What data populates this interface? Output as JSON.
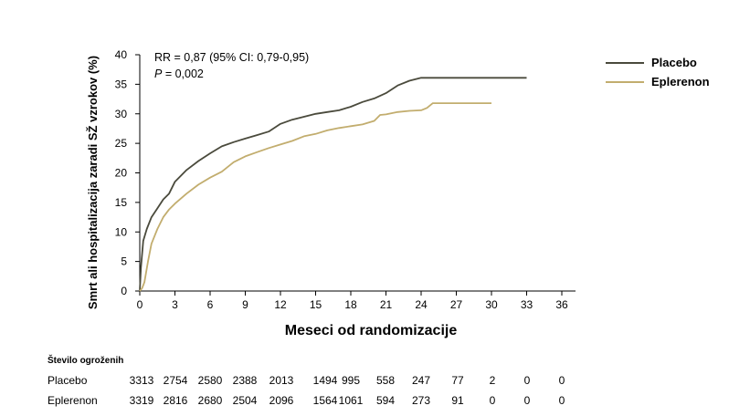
{
  "chart_data": {
    "type": "line",
    "xlabel": "Meseci od randomizacije",
    "ylabel": "Smrt ali hospitalizacija zaradi SŽ vzrokov (%)",
    "xlim": [
      0,
      36
    ],
    "ylim": [
      0,
      40
    ],
    "x_ticks": [
      0,
      3,
      6,
      9,
      12,
      15,
      18,
      21,
      24,
      27,
      30,
      33,
      36
    ],
    "y_ticks": [
      0,
      5,
      10,
      15,
      20,
      25,
      30,
      35,
      40
    ],
    "annotation_rr": "RR = 0,87 (95% CI: 0,79-0,95)",
    "annotation_p_label": "P",
    "annotation_p_value": " = 0,002",
    "legend_position": "top-right, outside plot",
    "series": [
      {
        "name": "Placebo",
        "color": "#4a4a3c",
        "x": [
          0,
          0.1,
          0.3,
          0.6,
          1,
          1.5,
          2,
          2.5,
          3,
          3.5,
          4,
          5,
          6,
          7,
          8,
          9,
          10,
          11,
          12,
          13,
          14,
          15,
          16,
          17,
          18,
          19,
          20,
          21,
          22,
          23,
          24,
          25,
          27,
          30,
          33
        ],
        "y": [
          0,
          4,
          8.5,
          10.5,
          12.5,
          14,
          15.5,
          16.5,
          18.5,
          19.5,
          20.5,
          22,
          23.3,
          24.5,
          25.2,
          25.8,
          26.4,
          27,
          28.3,
          29,
          29.5,
          30,
          30.3,
          30.6,
          31.2,
          32,
          32.6,
          33.5,
          34.8,
          35.6,
          36.1,
          36.1,
          36.1,
          36.1,
          36.1
        ]
      },
      {
        "name": "Eplerenon",
        "color": "#c2ad6e",
        "x": [
          0,
          0.2,
          0.4,
          0.7,
          1,
          1.5,
          2,
          2.5,
          3,
          4,
          5,
          6,
          7,
          8,
          9,
          10,
          11,
          12,
          13,
          14,
          15,
          16,
          17,
          18,
          19,
          20,
          20.5,
          21,
          22,
          23,
          24,
          24.5,
          25,
          27,
          30
        ],
        "y": [
          0,
          0.5,
          1.5,
          5,
          8,
          10.5,
          12.5,
          13.8,
          14.8,
          16.5,
          18,
          19.2,
          20.2,
          21.8,
          22.8,
          23.5,
          24.2,
          24.8,
          25.4,
          26.2,
          26.6,
          27.2,
          27.6,
          27.9,
          28.2,
          28.8,
          29.8,
          29.9,
          30.3,
          30.5,
          30.6,
          31,
          31.8,
          31.8,
          31.8
        ]
      }
    ]
  },
  "legend": [
    {
      "name": "Placebo",
      "color": "#4a4a3c"
    },
    {
      "name": "Eplerenon",
      "color": "#c2ad6e"
    }
  ],
  "risk_table": {
    "title": "Število ogroženih",
    "months": [
      0,
      3,
      6,
      9,
      12,
      15,
      18,
      21,
      24,
      27,
      30,
      33,
      36
    ],
    "rows": [
      {
        "label": "Placebo",
        "values": [
          "3313",
          "2754",
          "2580",
          "2388",
          "2013",
          "1494",
          "995",
          "558",
          "247",
          "77",
          "2",
          "0",
          "0"
        ]
      },
      {
        "label": "Eplerenon",
        "values": [
          "3319",
          "2816",
          "2680",
          "2504",
          "2096",
          "1564",
          "1061",
          "594",
          "273",
          "91",
          "0",
          "0",
          "0"
        ]
      }
    ]
  }
}
